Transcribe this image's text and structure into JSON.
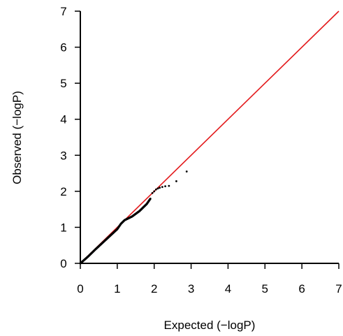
{
  "chart_data": {
    "type": "scatter",
    "title": "",
    "xlabel": "Expected (−logP)",
    "ylabel": "Observed (−logP)",
    "xlim": [
      0,
      7
    ],
    "ylim": [
      0,
      7
    ],
    "xticks": [
      0,
      1,
      2,
      3,
      4,
      5,
      6,
      7
    ],
    "yticks": [
      0,
      1,
      2,
      3,
      4,
      5,
      6,
      7
    ],
    "reference_line": {
      "from": [
        0,
        0
      ],
      "to": [
        7,
        7
      ],
      "color": "#e31a1c"
    },
    "point_color": "#000000",
    "curve": {
      "x": [
        0.0,
        0.2,
        0.4,
        0.6,
        0.8,
        1.0,
        1.1,
        1.2,
        1.4,
        1.6,
        1.8,
        1.9
      ],
      "y": [
        0.0,
        0.18,
        0.38,
        0.57,
        0.76,
        0.95,
        1.1,
        1.2,
        1.3,
        1.45,
        1.65,
        1.8
      ]
    },
    "tail_points": {
      "x": [
        1.95,
        2.0,
        2.05,
        2.1,
        2.15,
        2.22,
        2.3,
        2.4,
        2.6,
        2.88
      ],
      "y": [
        1.95,
        2.0,
        2.05,
        2.08,
        2.1,
        2.12,
        2.14,
        2.15,
        2.28,
        2.55
      ]
    }
  }
}
